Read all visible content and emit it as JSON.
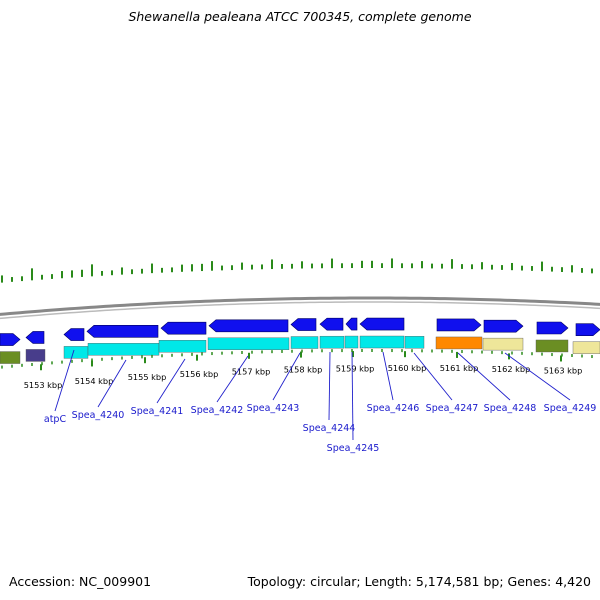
{
  "title": "Shewanella pealeana ATCC 700345, complete genome",
  "footer": {
    "accession": "Accession: NC_009901",
    "stats": "Topology: circular; Length: 5,174,581 bp; Genes: 4,420"
  },
  "scale_labels": [
    "5153 kbp",
    "5154 kbp",
    "5155 kbp",
    "5156 kbp",
    "5157 kbp",
    "5158 kbp",
    "5159 kbp",
    "5160 kbp",
    "5161 kbp",
    "5162 kbp",
    "5163 kbp"
  ],
  "gene_labels": [
    "atpC",
    "Spea_4240",
    "Spea_4241",
    "Spea_4242",
    "Spea_4243",
    "Spea_4244",
    "Spea_4245",
    "Spea_4246",
    "Spea_4247",
    "Spea_4248",
    "Spea_4249"
  ],
  "colors": {
    "cds": "#1010ee",
    "cds_function": "#00e8e8",
    "orange": "#ff8800",
    "khaki": "#eee69a",
    "olive": "#6b8e23",
    "slate": "#483d8b",
    "tick_green": "#2a8a1a",
    "backbone": "#888888",
    "label_line": "#2020cc"
  }
}
